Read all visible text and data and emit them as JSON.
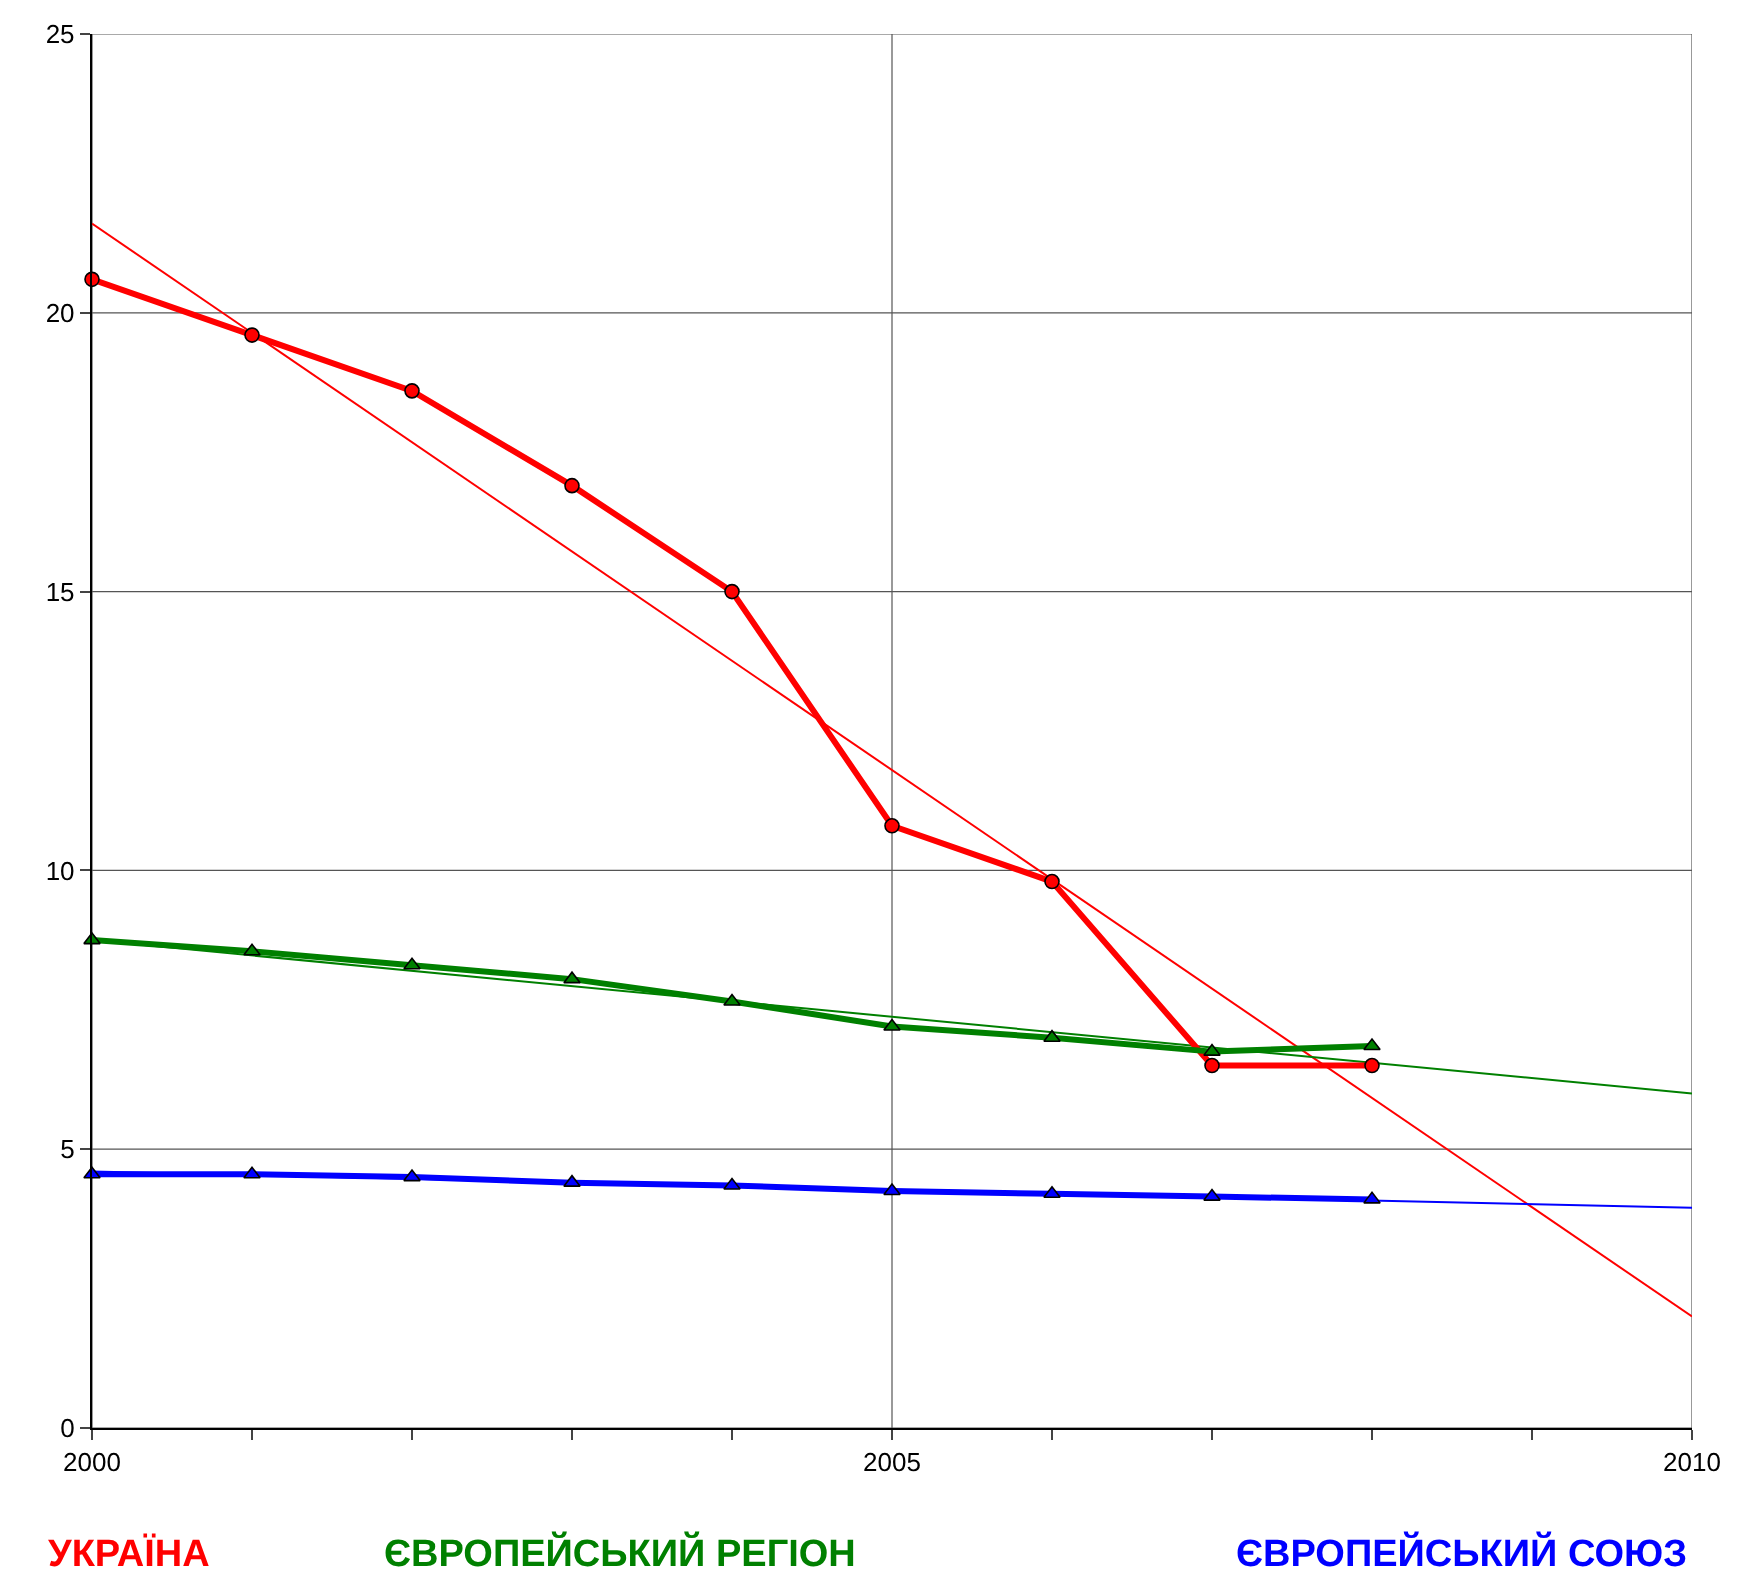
{
  "chart_data": {
    "type": "line",
    "x": [
      2000,
      2001,
      2002,
      2003,
      2004,
      2005,
      2006,
      2007,
      2008,
      2009,
      2010
    ],
    "series": [
      {
        "color": "#ff0000",
        "values": [
          21.6,
          null,
          null,
          null,
          null,
          null,
          null,
          null,
          null,
          null,
          2.0
        ]
      },
      {
        "color": "#008000",
        "values": [
          8.75,
          null,
          null,
          null,
          null,
          null,
          null,
          null,
          null,
          null,
          6.0
        ]
      },
      {
        "color": "#0000ff",
        "values": [
          4.6,
          null,
          null,
          null,
          null,
          null,
          null,
          null,
          null,
          null,
          3.95
        ]
      },
      {
        "name": "УКРАЇНА",
        "color": "#ff0000",
        "marker": "circle",
        "values": [
          20.6,
          19.6,
          18.6,
          16.9,
          15.0,
          10.8,
          9.8,
          6.5,
          6.5,
          null,
          null
        ]
      },
      {
        "name": "ЄВРОПЕЙСЬКИЙ РЕГІОН",
        "color": "#008000",
        "marker": "triangle",
        "values": [
          8.75,
          8.55,
          8.3,
          8.05,
          7.65,
          7.2,
          7.0,
          6.75,
          6.85,
          null,
          null
        ]
      },
      {
        "name": "ЄВРОПЕЙСЬКИЙ СОЮЗ",
        "color": "#0000ff",
        "marker": "triangle",
        "values": [
          4.55,
          4.55,
          4.5,
          4.4,
          4.35,
          4.25,
          4.2,
          4.15,
          4.1,
          null,
          null
        ]
      }
    ],
    "xlim": [
      2000,
      2010
    ],
    "ylim": [
      0,
      25
    ],
    "xticks": [
      2000,
      {
        "value": 2001,
        "label": null
      },
      {
        "value": 2002,
        "label": null
      },
      {
        "value": 2003,
        "label": null
      },
      {
        "value": 2004,
        "label": null
      },
      2005,
      {
        "value": 2006,
        "label": null
      },
      {
        "value": 2007,
        "label": null
      },
      {
        "value": 2008,
        "label": null
      },
      {
        "value": 2009,
        "label": null
      },
      2010
    ],
    "yticks": [
      0,
      5,
      10,
      15,
      20,
      25
    ],
    "grid": true,
    "legend": "bottom"
  }
}
